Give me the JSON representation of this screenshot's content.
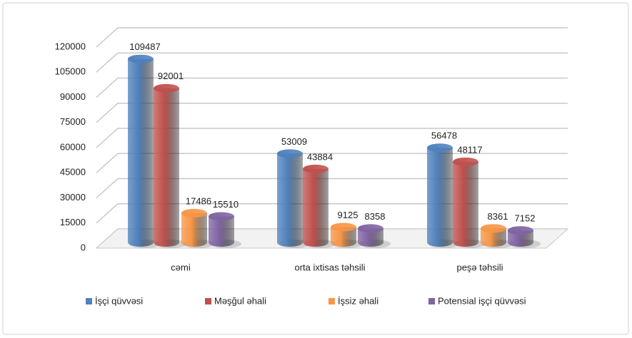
{
  "chart_data": {
    "type": "bar",
    "categories": [
      "cəmi",
      "orta ixtisas təhsili",
      "peşə təhsili"
    ],
    "series": [
      {
        "name": "İşçi qüvvəsi",
        "color": "#4f81bd",
        "values": [
          109487,
          53009,
          56478
        ]
      },
      {
        "name": "Məşğul əhali",
        "color": "#c0504d",
        "values": [
          92001,
          43884,
          48117
        ]
      },
      {
        "name": "İşsiz əhali",
        "color": "#f79646",
        "values": [
          17486,
          9125,
          8361
        ]
      },
      {
        "name": "Potensial işçi qüvvəsi",
        "color": "#8064a2",
        "values": [
          15510,
          8358,
          7152
        ]
      }
    ],
    "ylim": [
      0,
      120000
    ],
    "yticks": [
      0,
      15000,
      30000,
      45000,
      60000,
      75000,
      90000,
      105000,
      120000
    ],
    "grid": true,
    "legend": "bottom"
  }
}
